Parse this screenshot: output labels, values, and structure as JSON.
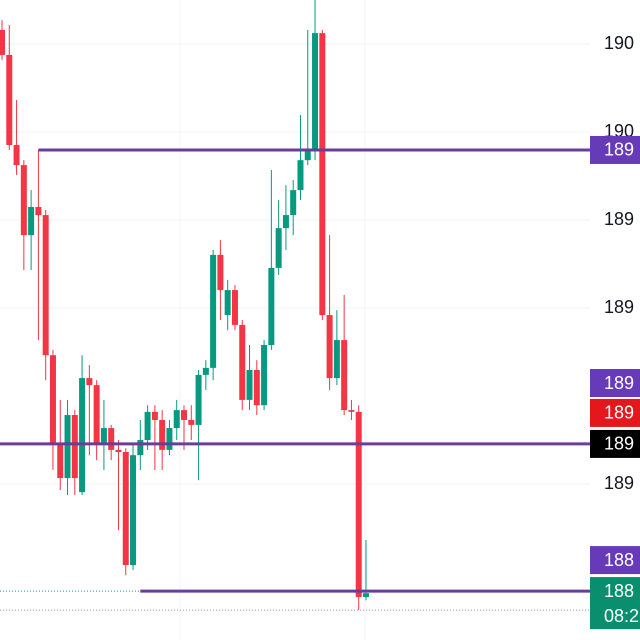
{
  "chart_data": {
    "type": "candlestick",
    "categories": [
      null,
      null,
      null,
      null,
      null,
      null,
      null,
      null,
      null,
      null,
      null,
      null,
      null,
      null,
      null,
      null,
      null,
      null,
      null,
      null,
      null,
      null,
      null,
      null,
      null,
      null,
      null,
      null,
      null,
      null,
      null,
      null,
      null,
      null,
      null,
      null,
      null,
      null,
      null,
      null,
      null,
      null,
      null,
      null,
      null,
      null,
      null,
      null,
      null,
      null,
      null
    ],
    "open": [
      1902.9,
      1902.19,
      1899.63,
      1899.06,
      1897.07,
      1897.87,
      1897.64,
      1893.66,
      1891.11,
      1890.17,
      1891.96,
      1889.77,
      1893.01,
      1892.81,
      1891.11,
      1891.59,
      1890.97,
      1890.91,
      1887.7,
      1890.82,
      1891.25,
      1892.05,
      1891.82,
      1890.97,
      1891.59,
      1892.1,
      1891.82,
      1891.68,
      1893.1,
      1893.3,
      1896.51,
      1894.8,
      1895.51,
      1894.52,
      1892.39,
      1893.24,
      1892.24,
      1893.95,
      1896.14,
      1897.27,
      1897.64,
      1898.35,
      1899.2,
      1899.49,
      1902.81,
      1894.8,
      1893.01,
      1894.09,
      1892.1,
      1892.05,
      1886.79
    ],
    "high": [
      1903.18,
      1903.04,
      1900.91,
      1899.2,
      1898.35,
      1899.49,
      1897.78,
      1893.81,
      1892.39,
      1892.39,
      1892.1,
      1893.66,
      1893.38,
      1892.95,
      1892.39,
      1891.68,
      1891.25,
      1891.02,
      1891.11,
      1891.82,
      1892.24,
      1892.24,
      1892.1,
      1891.82,
      1892.39,
      1892.24,
      1892.24,
      1893.24,
      1893.52,
      1896.65,
      1896.93,
      1895.8,
      1895.65,
      1894.66,
      1893.95,
      1893.52,
      1894.09,
      1898.92,
      1898.07,
      1898.49,
      1898.64,
      1900.48,
      1902.9,
      1903.75,
      1902.9,
      1897.07,
      1894.94,
      1895.37,
      1892.39,
      1892.24,
      1888.41
    ],
    "low": [
      1902.05,
      1899.49,
      1898.78,
      1896.08,
      1896.08,
      1894.09,
      1892.95,
      1890.4,
      1889.83,
      1889.69,
      1889.69,
      1889.69,
      1890.82,
      1890.68,
      1890.4,
      1890.68,
      1888.69,
      1887.41,
      1887.56,
      1890.4,
      1890.97,
      1890.4,
      1890.4,
      1890.82,
      1891.25,
      1890.97,
      1891.25,
      1890.11,
      1892.67,
      1892.95,
      1894.66,
      1894.37,
      1894.37,
      1892.1,
      1892.1,
      1891.96,
      1892.1,
      1893.81,
      1895.94,
      1896.65,
      1897.07,
      1898.07,
      1899.06,
      1899.2,
      1894.66,
      1892.67,
      1892.81,
      1891.96,
      1891.82,
      1886.42,
      1886.7
    ],
    "close": [
      1902.19,
      1899.63,
      1899.06,
      1897.07,
      1897.87,
      1897.64,
      1893.66,
      1891.11,
      1890.17,
      1891.96,
      1890.17,
      1893.01,
      1892.81,
      1891.11,
      1891.59,
      1890.97,
      1890.91,
      1887.7,
      1890.82,
      1891.25,
      1892.05,
      1891.82,
      1890.97,
      1891.59,
      1892.1,
      1891.82,
      1891.68,
      1893.1,
      1893.3,
      1896.51,
      1895.51,
      1895.51,
      1894.52,
      1892.39,
      1893.24,
      1892.24,
      1893.95,
      1896.14,
      1897.27,
      1897.64,
      1898.35,
      1899.2,
      1899.49,
      1902.81,
      1894.8,
      1893.01,
      1894.09,
      1892.1,
      1892.05,
      1886.79,
      1886.9
    ],
    "up_color": "#089981",
    "down_color": "#f23645",
    "ylim": [
      1885.57,
      1903.75
    ],
    "yticks": [
      {
        "value": 1902.5,
        "label": "190"
      },
      {
        "value": 1900,
        "label": "190"
      },
      {
        "value": 1897.5,
        "label": "189"
      },
      {
        "value": 1895,
        "label": "189"
      },
      {
        "value": 1890,
        "label": "189"
      }
    ],
    "grid": true,
    "levels": [
      {
        "value": 1899.49,
        "start": 5,
        "color": "#6a3d9a"
      },
      {
        "value": 1891.14,
        "start": 0,
        "color": "#6a3d9a"
      },
      {
        "value": 1886.96,
        "start": 19,
        "color": "#6a3d9a"
      }
    ],
    "price_badges": [
      {
        "value": 1899.49,
        "label": "189",
        "color": "#673ab7"
      },
      {
        "value": 1892.87,
        "label": "189",
        "color": "#673ab7"
      },
      {
        "value": 1892.02,
        "label": "189",
        "color": "#e3171c"
      },
      {
        "value": 1891.14,
        "label": "189",
        "color": "#000000"
      },
      {
        "value": 1887.84,
        "label": "188",
        "color": "#673ab7"
      },
      {
        "value": 1886.96,
        "label": "188",
        "color": "#0a8f6e",
        "countdown": "08:2"
      }
    ]
  }
}
